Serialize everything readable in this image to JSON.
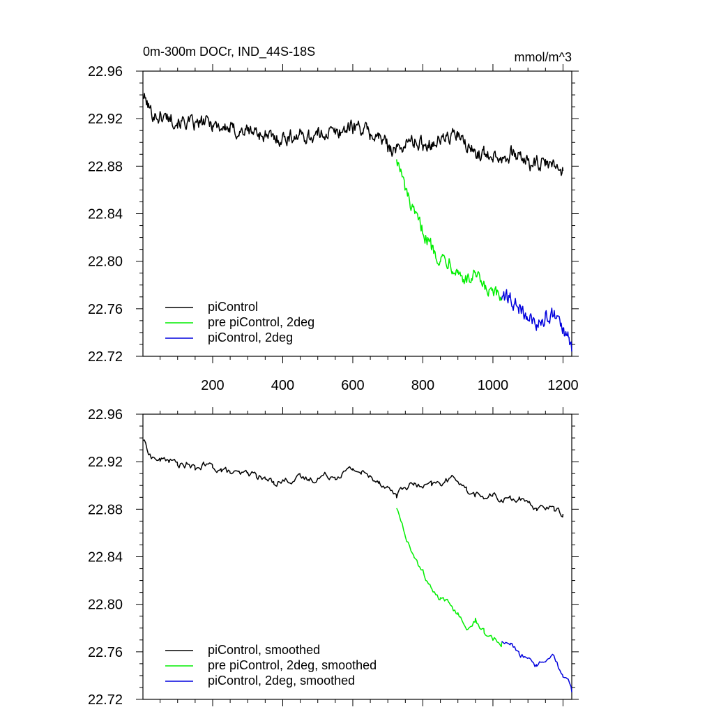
{
  "chart_data": [
    {
      "type": "line",
      "title": "0m-300m DOCr, IND_44S-18S",
      "units": "mmol/m^3",
      "xlim": [
        1,
        1225
      ],
      "ylim": [
        22.72,
        22.96
      ],
      "xticks": [
        200,
        400,
        600,
        800,
        1000,
        1200
      ],
      "yticks": [
        "22.72",
        "22.76",
        "22.80",
        "22.84",
        "22.88",
        "22.92",
        "22.96"
      ],
      "show_xtick_labels": true,
      "legend": "bottom-left",
      "grid": false,
      "series": [
        {
          "name": "piControl",
          "color": "#000000",
          "x": [
            1,
            25,
            50,
            75,
            100,
            125,
            150,
            175,
            200,
            225,
            250,
            275,
            300,
            325,
            350,
            375,
            400,
            425,
            450,
            475,
            500,
            525,
            550,
            575,
            600,
            625,
            650,
            675,
            700,
            725,
            750,
            775,
            800,
            825,
            850,
            875,
            900,
            925,
            950,
            975,
            1000,
            1025,
            1050,
            1075,
            1100,
            1125,
            1150,
            1175,
            1200
          ],
          "values": [
            22.94,
            22.925,
            22.921,
            22.922,
            22.918,
            22.917,
            22.914,
            22.917,
            22.916,
            22.913,
            22.911,
            22.909,
            22.91,
            22.909,
            22.905,
            22.903,
            22.904,
            22.905,
            22.906,
            22.905,
            22.906,
            22.909,
            22.908,
            22.911,
            22.914,
            22.912,
            22.907,
            22.904,
            22.898,
            22.893,
            22.899,
            22.901,
            22.898,
            22.9,
            22.902,
            22.905,
            22.906,
            22.896,
            22.892,
            22.89,
            22.891,
            22.888,
            22.89,
            22.889,
            22.883,
            22.881,
            22.882,
            22.88,
            22.876
          ]
        },
        {
          "name": "pre piControl, 2deg",
          "color": "#00ee00",
          "x": [
            725,
            750,
            775,
            800,
            825,
            850,
            875,
            900,
            925,
            950,
            975,
            1000,
            1025
          ],
          "values": [
            22.888,
            22.86,
            22.838,
            22.826,
            22.812,
            22.803,
            22.801,
            22.792,
            22.783,
            22.788,
            22.776,
            22.772,
            22.768
          ]
        },
        {
          "name": "piControl, 2deg",
          "color": "#0000dd",
          "x": [
            1025,
            1050,
            1075,
            1100,
            1125,
            1150,
            1175,
            1200,
            1215,
            1225
          ],
          "values": [
            22.77,
            22.768,
            22.76,
            22.752,
            22.748,
            22.752,
            22.755,
            22.74,
            22.734,
            22.724
          ]
        }
      ]
    },
    {
      "type": "line",
      "xlim": [
        1,
        1225
      ],
      "ylim": [
        22.72,
        22.96
      ],
      "xticks": [
        200,
        400,
        600,
        800,
        1000,
        1200
      ],
      "yticks": [
        "22.72",
        "22.76",
        "22.80",
        "22.84",
        "22.88",
        "22.92",
        "22.96"
      ],
      "show_xtick_labels": false,
      "legend": "bottom-left",
      "grid": false,
      "series": [
        {
          "name": "piControl, smoothed",
          "color": "#000000",
          "x": [
            1,
            25,
            50,
            75,
            100,
            125,
            150,
            175,
            200,
            225,
            250,
            275,
            300,
            325,
            350,
            375,
            400,
            425,
            450,
            475,
            500,
            525,
            550,
            575,
            600,
            625,
            650,
            675,
            700,
            725,
            750,
            775,
            800,
            825,
            850,
            875,
            900,
            925,
            950,
            975,
            1000,
            1025,
            1050,
            1075,
            1100,
            1125,
            1150,
            1175,
            1200
          ],
          "values": [
            22.939,
            22.924,
            22.921,
            22.922,
            22.918,
            22.917,
            22.914,
            22.917,
            22.916,
            22.913,
            22.911,
            22.909,
            22.91,
            22.909,
            22.905,
            22.903,
            22.904,
            22.905,
            22.906,
            22.905,
            22.906,
            22.909,
            22.908,
            22.911,
            22.914,
            22.911,
            22.907,
            22.904,
            22.898,
            22.892,
            22.899,
            22.901,
            22.898,
            22.9,
            22.902,
            22.905,
            22.906,
            22.896,
            22.892,
            22.89,
            22.891,
            22.888,
            22.89,
            22.889,
            22.883,
            22.881,
            22.882,
            22.88,
            22.876
          ]
        },
        {
          "name": "pre piControl, 2deg, smoothed",
          "color": "#00ee00",
          "x": [
            725,
            750,
            775,
            800,
            825,
            850,
            875,
            900,
            925,
            950,
            975,
            1000,
            1025
          ],
          "values": [
            22.882,
            22.86,
            22.838,
            22.826,
            22.812,
            22.803,
            22.801,
            22.792,
            22.783,
            22.788,
            22.776,
            22.772,
            22.768
          ]
        },
        {
          "name": "piControl, 2deg, smoothed",
          "color": "#0000dd",
          "x": [
            1025,
            1050,
            1075,
            1100,
            1125,
            1150,
            1175,
            1200,
            1215,
            1225
          ],
          "values": [
            22.77,
            22.768,
            22.76,
            22.752,
            22.748,
            22.752,
            22.755,
            22.74,
            22.736,
            22.726
          ]
        }
      ]
    }
  ]
}
